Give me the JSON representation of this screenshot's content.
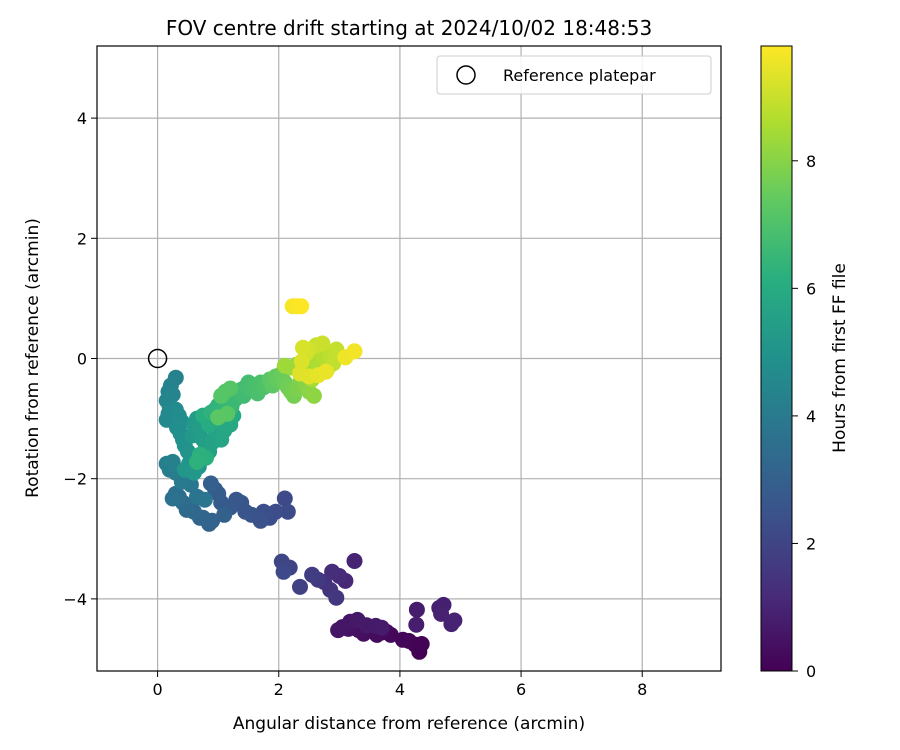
{
  "chart_data": {
    "type": "scatter",
    "title": "FOV centre drift starting at 2024/10/02 18:48:53",
    "xlabel": "Angular distance from reference (arcmin)",
    "ylabel": "Rotation from reference (arcmin)",
    "xlim": [
      -1.0,
      9.3
    ],
    "ylim": [
      -5.2,
      5.2
    ],
    "xticks": [
      0,
      2,
      4,
      6,
      8
    ],
    "yticks": [
      -4,
      -2,
      0,
      2,
      4
    ],
    "grid": true,
    "legend": {
      "position": "top-right",
      "entries": [
        {
          "label": "Reference platepar",
          "marker": "open-circle"
        }
      ]
    },
    "reference_point": {
      "x": 0,
      "y": 0
    },
    "colorbar": {
      "label": "Hours from first FF file",
      "range": [
        0,
        9.8
      ],
      "ticks": [
        0,
        2,
        4,
        6,
        8
      ],
      "colormap": "viridis"
    },
    "series": [
      {
        "c_from": 0.0,
        "c_to": 1.0,
        "points": [
          [
            4.32,
            -4.88
          ],
          [
            4.25,
            -4.76
          ],
          [
            4.36,
            -4.75
          ],
          [
            4.15,
            -4.7
          ],
          [
            4.05,
            -4.68
          ],
          [
            3.85,
            -4.6
          ],
          [
            3.78,
            -4.55
          ],
          [
            3.7,
            -4.56
          ],
          [
            3.62,
            -4.6
          ],
          [
            3.55,
            -4.52
          ],
          [
            3.48,
            -4.46
          ],
          [
            3.4,
            -4.58
          ],
          [
            3.32,
            -4.52
          ],
          [
            3.25,
            -4.45
          ],
          [
            3.15,
            -4.5
          ],
          [
            3.05,
            -4.47
          ],
          [
            2.98,
            -4.52
          ],
          [
            3.18,
            -4.38
          ],
          [
            3.3,
            -4.35
          ],
          [
            3.45,
            -4.44
          ],
          [
            3.6,
            -4.45
          ],
          [
            3.7,
            -4.48
          ],
          [
            4.28,
            -4.18
          ],
          [
            4.27,
            -4.43
          ],
          [
            4.65,
            -4.15
          ],
          [
            4.72,
            -4.1
          ],
          [
            4.68,
            -4.25
          ],
          [
            4.85,
            -4.42
          ],
          [
            4.9,
            -4.36
          ]
        ]
      },
      {
        "c_from": 1.0,
        "c_to": 2.2,
        "points": [
          [
            3.25,
            -3.37
          ],
          [
            3.1,
            -3.7
          ],
          [
            3.0,
            -3.62
          ],
          [
            2.88,
            -3.55
          ],
          [
            2.75,
            -3.72
          ],
          [
            2.85,
            -3.85
          ],
          [
            2.95,
            -3.98
          ],
          [
            2.65,
            -3.68
          ],
          [
            2.55,
            -3.6
          ],
          [
            2.35,
            -3.8
          ],
          [
            2.18,
            -3.48
          ],
          [
            2.05,
            -3.38
          ],
          [
            2.08,
            -3.55
          ]
        ]
      },
      {
        "c_from": 2.2,
        "c_to": 3.2,
        "points": [
          [
            2.1,
            -2.33
          ],
          [
            2.15,
            -2.55
          ],
          [
            1.95,
            -2.55
          ],
          [
            1.85,
            -2.65
          ],
          [
            1.75,
            -2.55
          ],
          [
            1.7,
            -2.7
          ],
          [
            1.55,
            -2.6
          ],
          [
            1.45,
            -2.55
          ],
          [
            1.38,
            -2.4
          ],
          [
            1.3,
            -2.35
          ],
          [
            1.2,
            -2.48
          ],
          [
            1.05,
            -2.4
          ],
          [
            1.0,
            -2.25
          ],
          [
            0.95,
            -2.18
          ],
          [
            0.88,
            -2.08
          ],
          [
            1.1,
            -2.6
          ],
          [
            0.9,
            -2.7
          ],
          [
            0.85,
            -2.75
          ],
          [
            0.75,
            -2.65
          ]
        ]
      },
      {
        "c_from": 3.2,
        "c_to": 4.3,
        "points": [
          [
            0.7,
            -2.65
          ],
          [
            0.6,
            -2.55
          ],
          [
            0.55,
            -2.45
          ],
          [
            0.48,
            -2.52
          ],
          [
            0.42,
            -2.4
          ],
          [
            0.35,
            -2.3
          ],
          [
            0.3,
            -2.25
          ],
          [
            0.25,
            -2.33
          ],
          [
            0.65,
            -2.3
          ],
          [
            0.78,
            -2.35
          ],
          [
            0.55,
            -2.1
          ],
          [
            0.45,
            -1.95
          ],
          [
            0.4,
            -2.05
          ],
          [
            0.3,
            -1.9
          ],
          [
            0.2,
            -1.85
          ],
          [
            0.15,
            -1.75
          ],
          [
            0.25,
            -1.72
          ]
        ]
      },
      {
        "c_from": 4.3,
        "c_to": 5.3,
        "points": [
          [
            0.3,
            -0.32
          ],
          [
            0.22,
            -0.45
          ],
          [
            0.18,
            -0.55
          ],
          [
            0.25,
            -0.6
          ],
          [
            0.15,
            -0.7
          ],
          [
            0.2,
            -0.8
          ],
          [
            0.18,
            -0.92
          ],
          [
            0.15,
            -1.02
          ],
          [
            0.3,
            -0.85
          ],
          [
            0.35,
            -0.95
          ],
          [
            0.4,
            -1.05
          ],
          [
            0.32,
            -1.15
          ],
          [
            0.38,
            -1.25
          ],
          [
            0.42,
            -1.35
          ],
          [
            0.45,
            -1.45
          ],
          [
            0.5,
            -1.55
          ],
          [
            0.55,
            -1.62
          ],
          [
            0.52,
            -1.75
          ],
          [
            0.45,
            -1.85
          ],
          [
            0.6,
            -1.9
          ],
          [
            0.68,
            -1.8
          ],
          [
            0.58,
            -1.28
          ]
        ]
      },
      {
        "c_from": 5.3,
        "c_to": 6.3,
        "points": [
          [
            0.6,
            -1.1
          ],
          [
            0.65,
            -1.0
          ],
          [
            0.7,
            -1.2
          ],
          [
            0.75,
            -1.35
          ],
          [
            0.8,
            -1.45
          ],
          [
            0.85,
            -1.55
          ],
          [
            0.9,
            -1.4
          ],
          [
            0.95,
            -1.3
          ],
          [
            1.0,
            -1.25
          ],
          [
            1.05,
            -1.35
          ],
          [
            1.1,
            -1.2
          ],
          [
            1.15,
            -1.05
          ],
          [
            1.2,
            -1.1
          ],
          [
            1.25,
            -0.95
          ],
          [
            0.85,
            -1.1
          ],
          [
            0.95,
            -1.02
          ],
          [
            0.75,
            -0.95
          ],
          [
            0.8,
            -1.65
          ],
          [
            0.7,
            -1.6
          ],
          [
            0.65,
            -1.72
          ]
        ]
      },
      {
        "c_from": 6.3,
        "c_to": 7.3,
        "points": [
          [
            0.88,
            -0.9
          ],
          [
            0.95,
            -0.85
          ],
          [
            1.0,
            -0.78
          ],
          [
            1.08,
            -0.85
          ],
          [
            1.12,
            -0.72
          ],
          [
            1.18,
            -0.65
          ],
          [
            1.22,
            -0.8
          ],
          [
            1.28,
            -0.68
          ],
          [
            1.32,
            -0.58
          ],
          [
            1.38,
            -0.52
          ],
          [
            1.42,
            -0.62
          ],
          [
            1.45,
            -0.48
          ],
          [
            1.5,
            -0.4
          ],
          [
            1.55,
            -0.5
          ],
          [
            1.6,
            -0.45
          ],
          [
            1.65,
            -0.58
          ],
          [
            1.7,
            -0.4
          ],
          [
            1.75,
            -0.48
          ],
          [
            1.8,
            -0.42
          ],
          [
            1.12,
            -0.55
          ],
          [
            1.2,
            -0.5
          ],
          [
            1.05,
            -0.62
          ],
          [
            1.15,
            -0.92
          ],
          [
            1.0,
            -0.98
          ]
        ]
      },
      {
        "c_from": 7.3,
        "c_to": 8.5,
        "points": [
          [
            1.85,
            -0.35
          ],
          [
            1.9,
            -0.45
          ],
          [
            1.95,
            -0.3
          ],
          [
            2.0,
            -0.38
          ],
          [
            2.05,
            -0.25
          ],
          [
            2.1,
            -0.4
          ],
          [
            2.15,
            -0.48
          ],
          [
            2.2,
            -0.55
          ],
          [
            2.25,
            -0.62
          ],
          [
            2.3,
            -0.5
          ],
          [
            2.35,
            -0.4
          ],
          [
            2.4,
            -0.3
          ],
          [
            2.45,
            -0.45
          ],
          [
            2.5,
            -0.55
          ],
          [
            2.58,
            -0.62
          ],
          [
            2.45,
            -0.2
          ],
          [
            2.3,
            -0.1
          ],
          [
            2.2,
            -0.15
          ],
          [
            2.1,
            -0.12
          ],
          [
            2.35,
            -0.22
          ],
          [
            2.55,
            -0.35
          ]
        ]
      },
      {
        "c_from": 8.5,
        "c_to": 9.8,
        "points": [
          [
            2.55,
            -0.05
          ],
          [
            2.6,
            0.05
          ],
          [
            2.65,
            -0.12
          ],
          [
            2.7,
            0.1
          ],
          [
            2.75,
            0.0
          ],
          [
            2.8,
            -0.18
          ],
          [
            2.85,
            0.05
          ],
          [
            2.9,
            -0.08
          ],
          [
            2.95,
            0.15
          ],
          [
            2.62,
            0.22
          ],
          [
            2.72,
            0.25
          ],
          [
            2.5,
            0.15
          ],
          [
            2.45,
            0.08
          ],
          [
            2.4,
            0.18
          ],
          [
            2.38,
            -0.05
          ],
          [
            2.35,
            -0.25
          ],
          [
            2.5,
            -0.3
          ],
          [
            2.65,
            -0.28
          ],
          [
            2.78,
            -0.22
          ],
          [
            3.1,
            0.02
          ],
          [
            3.25,
            0.12
          ],
          [
            2.23,
            0.87
          ],
          [
            2.3,
            0.87
          ],
          [
            2.37,
            0.87
          ]
        ]
      }
    ]
  }
}
